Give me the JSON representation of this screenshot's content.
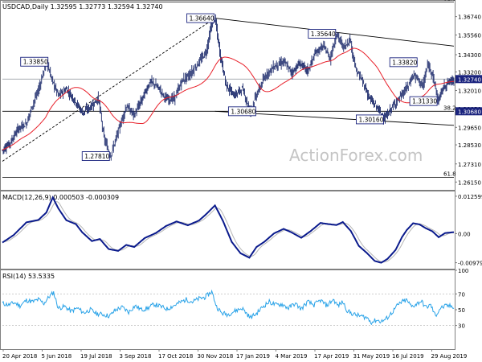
{
  "header": {
    "symbol": "USDCAD",
    "timeframe": "Daily",
    "ohlc": "1.32595 1.32773 1.32594 1.32740",
    "title": "USDCAD,Daily  1.32595 1.32773 1.32594 1.32740"
  },
  "watermark": "ActionForex.com",
  "colors": {
    "candle": "#1c2a6b",
    "sma": "#e8202a",
    "trendline": "#000000",
    "fib_line": "#000000",
    "price_line": "#9aa0a6",
    "macd_line": "#0a1a8c",
    "signal_line": "#b5b5b5",
    "rsi_line": "#2aa3e8",
    "label_box": "#1a237e"
  },
  "chart_data": [
    {
      "type": "candlestick",
      "name": "price",
      "ylim": [
        1.2565,
        1.3775
      ],
      "y_ticks": [
        1.3674,
        1.3556,
        1.343,
        1.332,
        1.3201,
        1.3085,
        1.2965,
        1.2853,
        1.2731,
        1.2615
      ],
      "y_tick_labels": [
        "1.36740",
        "1.35560",
        "1.34300",
        "1.33200",
        "1.32010",
        "1.30850",
        "1.29650",
        "1.28530",
        "1.27310",
        "1.26150"
      ],
      "current_price": 1.3274,
      "current_price_label": "1.32740",
      "fib_levels": [
        {
          "label": "61.8",
          "value": 1.3768
        },
        {
          "label": "38.2",
          "value": 1.3068
        },
        {
          "label": "61.8",
          "value": 1.2645
        }
      ],
      "fib_38_tag": "1.30680",
      "annotations": [
        {
          "label": "1.33850",
          "value": 1.3385
        },
        {
          "label": "1.36640",
          "value": 1.3664
        },
        {
          "label": "1.35640",
          "value": 1.3564
        },
        {
          "label": "1.33820",
          "value": 1.3382
        },
        {
          "label": "1.30680",
          "value": 1.3068
        },
        {
          "label": "1.30160",
          "value": 1.3016
        },
        {
          "label": "1.31330",
          "value": 1.3133
        },
        {
          "label": "1.27810",
          "value": 1.2781
        }
      ],
      "x_labels": [
        "20 Apr 2018",
        "5 Jun 2018",
        "19 Jul 2018",
        "3 Sep 2018",
        "17 Oct 2018",
        "30 Nov 2018",
        "17 Jan 2019",
        "4 Mar 2019",
        "17 Apr 2019",
        "31 May 2019",
        "16 Jul 2019",
        "29 Aug 2019"
      ],
      "series": [
        {
          "name": "close",
          "anchors": [
            [
              0,
              1.282
            ],
            [
              10,
              1.287
            ],
            [
              20,
              1.296
            ],
            [
              30,
              1.299
            ],
            [
              37,
              1.31
            ],
            [
              45,
              1.3205
            ],
            [
              55,
              1.3385
            ],
            [
              62,
              1.3268
            ],
            [
              70,
              1.317
            ],
            [
              80,
              1.321
            ],
            [
              90,
              1.314
            ],
            [
              100,
              1.306
            ],
            [
              110,
              1.3095
            ],
            [
              120,
              1.3152
            ],
            [
              127,
              1.2895
            ],
            [
              135,
              1.2781
            ],
            [
              145,
              1.2945
            ],
            [
              155,
              1.31
            ],
            [
              165,
              1.3045
            ],
            [
              175,
              1.315
            ],
            [
              185,
              1.326
            ],
            [
              195,
              1.322
            ],
            [
              205,
              1.3145
            ],
            [
              215,
              1.315
            ],
            [
              225,
              1.3265
            ],
            [
              235,
              1.3305
            ],
            [
              245,
              1.3375
            ],
            [
              255,
              1.345
            ],
            [
              262,
              1.363
            ],
            [
              266,
              1.3664
            ],
            [
              272,
              1.3445
            ],
            [
              280,
              1.3235
            ],
            [
              290,
              1.3168
            ],
            [
              300,
              1.3215
            ],
            [
              310,
              1.3068
            ],
            [
              318,
              1.3175
            ],
            [
              330,
              1.3305
            ],
            [
              340,
              1.3355
            ],
            [
              352,
              1.3385
            ],
            [
              362,
              1.3315
            ],
            [
              372,
              1.3375
            ],
            [
              382,
              1.3328
            ],
            [
              392,
              1.3445
            ],
            [
              402,
              1.3485
            ],
            [
              410,
              1.3405
            ],
            [
              418,
              1.3564
            ],
            [
              427,
              1.3475
            ],
            [
              435,
              1.353
            ],
            [
              442,
              1.3335
            ],
            [
              450,
              1.3265
            ],
            [
              460,
              1.3145
            ],
            [
              470,
              1.3085
            ],
            [
              478,
              1.3016
            ],
            [
              485,
              1.3075
            ],
            [
              492,
              1.3125
            ],
            [
              500,
              1.3175
            ],
            [
              508,
              1.3235
            ],
            [
              514,
              1.3302
            ],
            [
              520,
              1.3275
            ],
            [
              526,
              1.3225
            ],
            [
              532,
              1.3365
            ],
            [
              538,
              1.3312
            ],
            [
              545,
              1.3133
            ],
            [
              552,
              1.3225
            ],
            [
              558,
              1.3255
            ],
            [
              565,
              1.327
            ]
          ]
        }
      ],
      "overlays": [
        "55-period moving average (red)",
        "trendlines (black)",
        "price line at 1.32740"
      ]
    },
    {
      "type": "line",
      "name": "macd",
      "title": "MACD(12,26,9) 0.000503 -0.000309",
      "ylim": [
        -0.0118,
        0.0142
      ],
      "y_ticks": [
        0.012599,
        0.0,
        -0.00979
      ],
      "y_tick_labels": [
        "0.012599",
        "0.00",
        "-0.00979"
      ],
      "series": [
        {
          "name": "MACD",
          "anchors": [
            [
              0,
              -0.003
            ],
            [
              14,
              -0.0005
            ],
            [
              30,
              0.0038
            ],
            [
              45,
              0.0046
            ],
            [
              55,
              0.0071
            ],
            [
              63,
              0.0122
            ],
            [
              70,
              0.0085
            ],
            [
              80,
              0.0045
            ],
            [
              92,
              0.0032
            ],
            [
              100,
              0.0004
            ],
            [
              112,
              -0.0025
            ],
            [
              122,
              -0.0018
            ],
            [
              133,
              -0.0052
            ],
            [
              145,
              -0.0058
            ],
            [
              155,
              -0.0038
            ],
            [
              165,
              -0.0045
            ],
            [
              178,
              -0.0015
            ],
            [
              192,
              0.0002
            ],
            [
              205,
              0.0026
            ],
            [
              218,
              0.0041
            ],
            [
              232,
              0.0028
            ],
            [
              246,
              0.0044
            ],
            [
              256,
              0.0068
            ],
            [
              266,
              0.0095
            ],
            [
              276,
              0.0043
            ],
            [
              287,
              -0.0028
            ],
            [
              298,
              -0.0066
            ],
            [
              309,
              -0.0081
            ],
            [
              318,
              -0.0045
            ],
            [
              328,
              -0.0027
            ],
            [
              340,
              0.0001
            ],
            [
              352,
              0.0016
            ],
            [
              362,
              0.0004
            ],
            [
              374,
              -0.0014
            ],
            [
              386,
              0.0009
            ],
            [
              398,
              0.0036
            ],
            [
              408,
              0.0032
            ],
            [
              418,
              0.0029
            ],
            [
              426,
              0.0039
            ],
            [
              436,
              0.0009
            ],
            [
              446,
              -0.0041
            ],
            [
              456,
              -0.0065
            ],
            [
              466,
              -0.0092
            ],
            [
              474,
              -0.0098
            ],
            [
              482,
              -0.0085
            ],
            [
              492,
              -0.0055
            ],
            [
              500,
              -0.0012
            ],
            [
              506,
              0.0012
            ],
            [
              514,
              0.0035
            ],
            [
              522,
              0.0031
            ],
            [
              530,
              0.0018
            ],
            [
              538,
              0.0008
            ],
            [
              546,
              -0.0012
            ],
            [
              554,
              0.0002
            ],
            [
              565,
              0.0005
            ]
          ]
        }
      ]
    },
    {
      "type": "line",
      "name": "rsi",
      "title": "RSI(14) 53.5335",
      "ylim": [
        0,
        100
      ],
      "y_ticks": [
        100,
        70,
        50,
        30
      ],
      "y_tick_labels": [
        "100",
        "70",
        "50",
        "30"
      ],
      "series": [
        {
          "name": "RSI(14)",
          "anchors": [
            [
              0,
              58
            ],
            [
              8,
              56
            ],
            [
              15,
              59
            ],
            [
              22,
              55
            ],
            [
              30,
              62
            ],
            [
              38,
              60
            ],
            [
              45,
              63
            ],
            [
              52,
              58
            ],
            [
              58,
              66
            ],
            [
              64,
              72
            ],
            [
              70,
              52
            ],
            [
              78,
              54
            ],
            [
              86,
              48
            ],
            [
              94,
              52
            ],
            [
              102,
              46
            ],
            [
              110,
              50
            ],
            [
              118,
              45
            ],
            [
              126,
              44
            ],
            [
              134,
              42
            ],
            [
              142,
              50
            ],
            [
              150,
              53
            ],
            [
              158,
              47
            ],
            [
              166,
              55
            ],
            [
              174,
              50
            ],
            [
              182,
              52
            ],
            [
              190,
              57
            ],
            [
              198,
              54
            ],
            [
              206,
              51
            ],
            [
              214,
              55
            ],
            [
              222,
              59
            ],
            [
              230,
              63
            ],
            [
              238,
              60
            ],
            [
              246,
              64
            ],
            [
              254,
              66
            ],
            [
              262,
              73
            ],
            [
              268,
              54
            ],
            [
              274,
              46
            ],
            [
              282,
              44
            ],
            [
              290,
              48
            ],
            [
              300,
              52
            ],
            [
              310,
              40
            ],
            [
              318,
              45
            ],
            [
              326,
              54
            ],
            [
              334,
              60
            ],
            [
              342,
              56
            ],
            [
              350,
              57
            ],
            [
              358,
              52
            ],
            [
              366,
              58
            ],
            [
              374,
              51
            ],
            [
              382,
              60
            ],
            [
              390,
              56
            ],
            [
              398,
              62
            ],
            [
              406,
              55
            ],
            [
              414,
              63
            ],
            [
              420,
              55
            ],
            [
              426,
              60
            ],
            [
              432,
              48
            ],
            [
              440,
              44
            ],
            [
              448,
              42
            ],
            [
              456,
              40
            ],
            [
              462,
              34
            ],
            [
              468,
              37
            ],
            [
              474,
              35
            ],
            [
              480,
              38
            ],
            [
              488,
              47
            ],
            [
              494,
              55
            ],
            [
              500,
              60
            ],
            [
              506,
              62
            ],
            [
              512,
              54
            ],
            [
              518,
              57
            ],
            [
              524,
              61
            ],
            [
              530,
              53
            ],
            [
              536,
              56
            ],
            [
              542,
              42
            ],
            [
              548,
              52
            ],
            [
              556,
              55
            ],
            [
              565,
              54
            ]
          ]
        }
      ]
    }
  ]
}
